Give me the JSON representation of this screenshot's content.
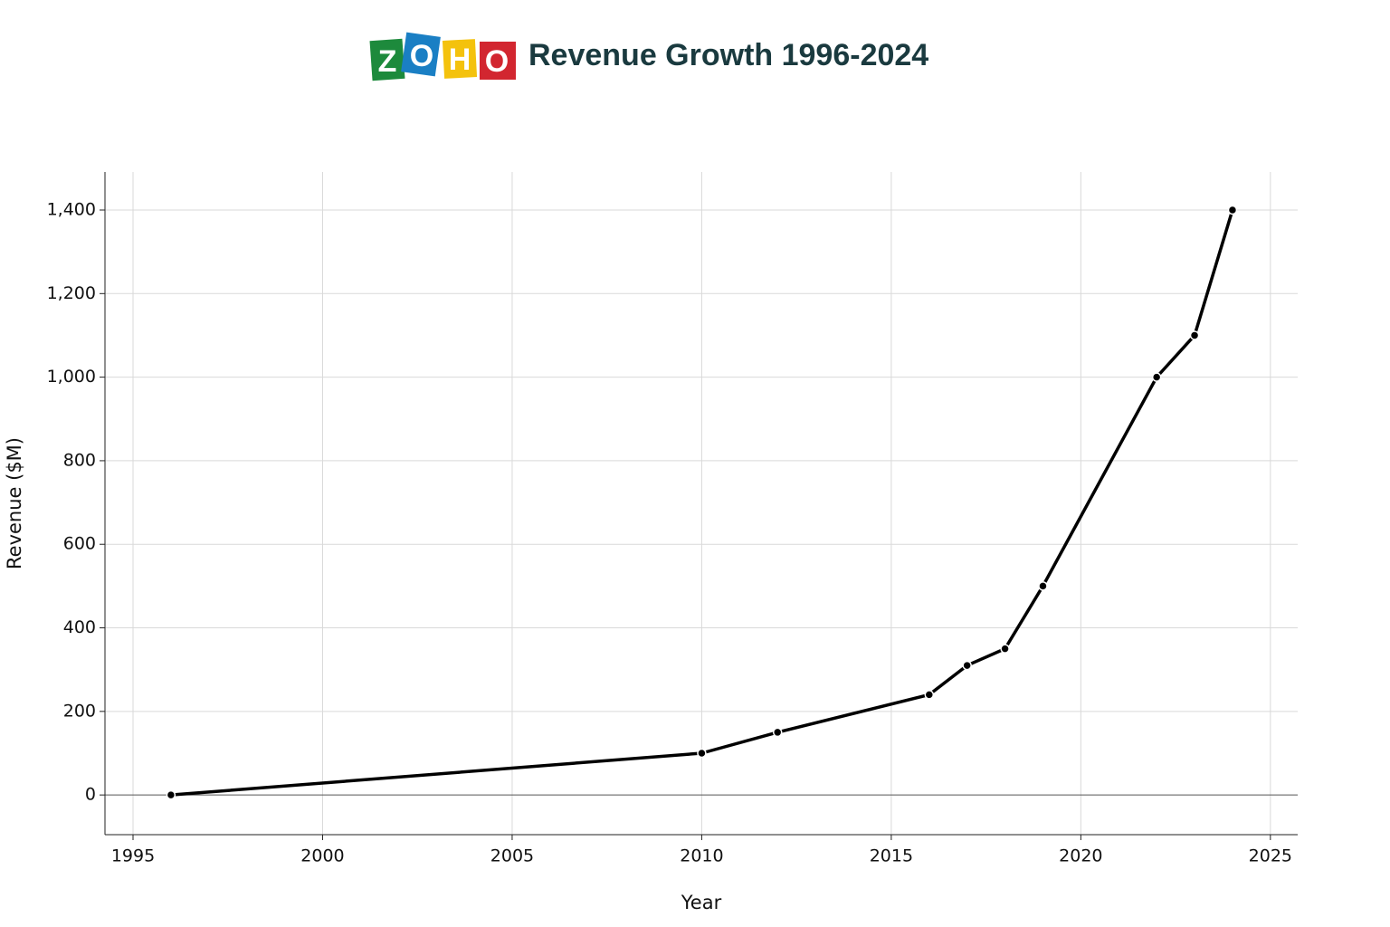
{
  "chart_data": {
    "type": "line",
    "title": "Revenue Growth 1996-2024",
    "logo": [
      "Z",
      "O",
      "H",
      "O"
    ],
    "x_label": "Year",
    "y_label": "Revenue ($M)",
    "x": [
      1996,
      2010,
      2012,
      2016,
      2017,
      2018,
      2019,
      2022,
      2023,
      2024
    ],
    "series": [
      {
        "name": "Revenue",
        "color": "#000000",
        "values": [
          0,
          100,
          150,
          240,
          310,
          350,
          500,
          1000,
          1100,
          1400
        ]
      }
    ],
    "xlim": [
      1994.26,
      2025.72
    ],
    "xticks": [
      1995,
      2000,
      2005,
      2010,
      2015,
      2020,
      2025
    ],
    "ylim": [
      -95,
      1491
    ],
    "yticks": [
      0,
      200,
      400,
      600,
      800,
      {
        "value": 1000,
        "label": "1,000"
      },
      {
        "value": 1200,
        "label": "1,200"
      },
      {
        "value": 1400,
        "label": "1,400"
      }
    ],
    "grid": true
  }
}
